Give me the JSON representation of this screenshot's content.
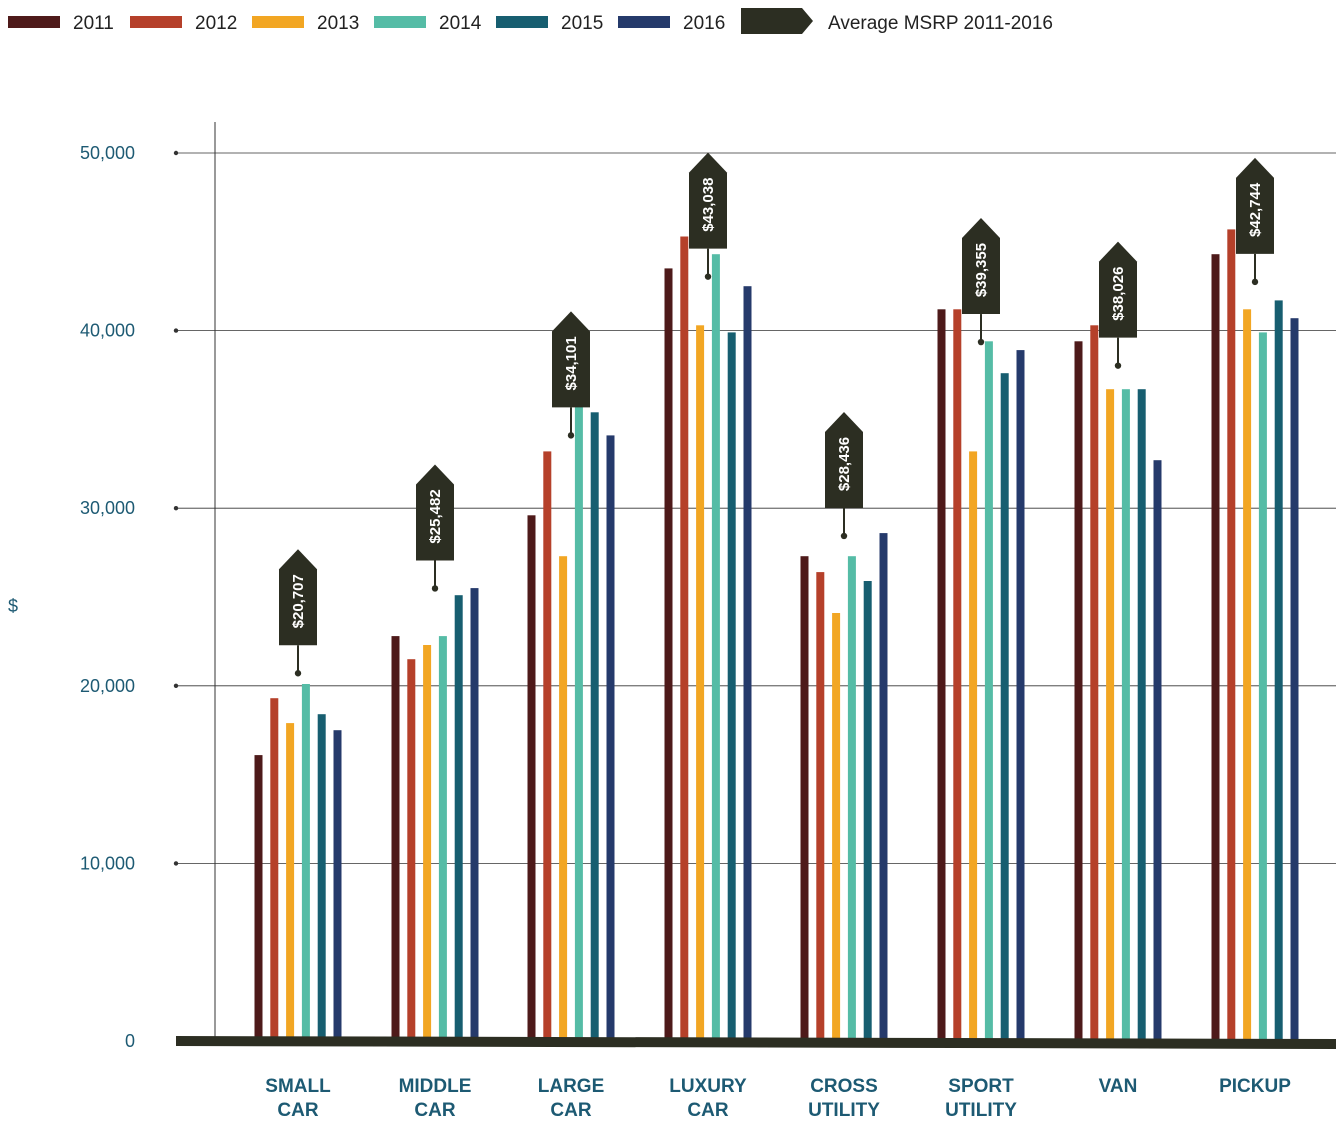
{
  "chart_data": {
    "type": "bar",
    "ylabel": "$",
    "ylim": [
      0,
      50000
    ],
    "yticks": [
      0,
      10000,
      20000,
      30000,
      40000,
      50000
    ],
    "ytick_labels": [
      "0",
      "10,000",
      "20,000",
      "30,000",
      "40,000",
      "50,000"
    ],
    "grid": true,
    "legend_position": "top-left",
    "category_label_lines": [
      [
        "SMALL",
        "CAR"
      ],
      [
        "MIDDLE",
        "CAR"
      ],
      [
        "LARGE",
        "CAR"
      ],
      [
        "LUXURY",
        "CAR"
      ],
      [
        "CROSS",
        "UTILITY"
      ],
      [
        "SPORT",
        "UTILITY"
      ],
      [
        "VAN"
      ],
      [
        "PICKUP"
      ]
    ],
    "series": [
      {
        "name": "2011",
        "color": "#4e1a1a",
        "values": [
          16100,
          22800,
          29600,
          43500,
          27300,
          41200,
          39400,
          44300
        ]
      },
      {
        "name": "2012",
        "color": "#b5402a",
        "values": [
          19300,
          21500,
          33200,
          45300,
          26400,
          41200,
          40300,
          45700
        ]
      },
      {
        "name": "2013",
        "color": "#f2a623",
        "values": [
          17900,
          22300,
          27300,
          40300,
          24100,
          33200,
          36700,
          41200
        ]
      },
      {
        "name": "2014",
        "color": "#55bca6",
        "values": [
          20100,
          22800,
          37600,
          44300,
          27300,
          39400,
          36700,
          39900
        ]
      },
      {
        "name": "2015",
        "color": "#175e70",
        "values": [
          18400,
          25100,
          35400,
          39900,
          25900,
          37600,
          36700,
          41700
        ]
      },
      {
        "name": "2016",
        "color": "#253a6b",
        "values": [
          17500,
          25500,
          34100,
          42500,
          28600,
          38900,
          32700,
          40700
        ]
      }
    ],
    "average": {
      "name": "Average MSRP 2011-2016",
      "color": "#2c2e22",
      "values": [
        20707,
        25482,
        34101,
        43038,
        28436,
        39355,
        38026,
        42744
      ],
      "labels": [
        "$20,707",
        "$25,482",
        "$34,101",
        "$43,038",
        "$28,436",
        "$39,355",
        "$38,026",
        "$42,744"
      ]
    }
  }
}
